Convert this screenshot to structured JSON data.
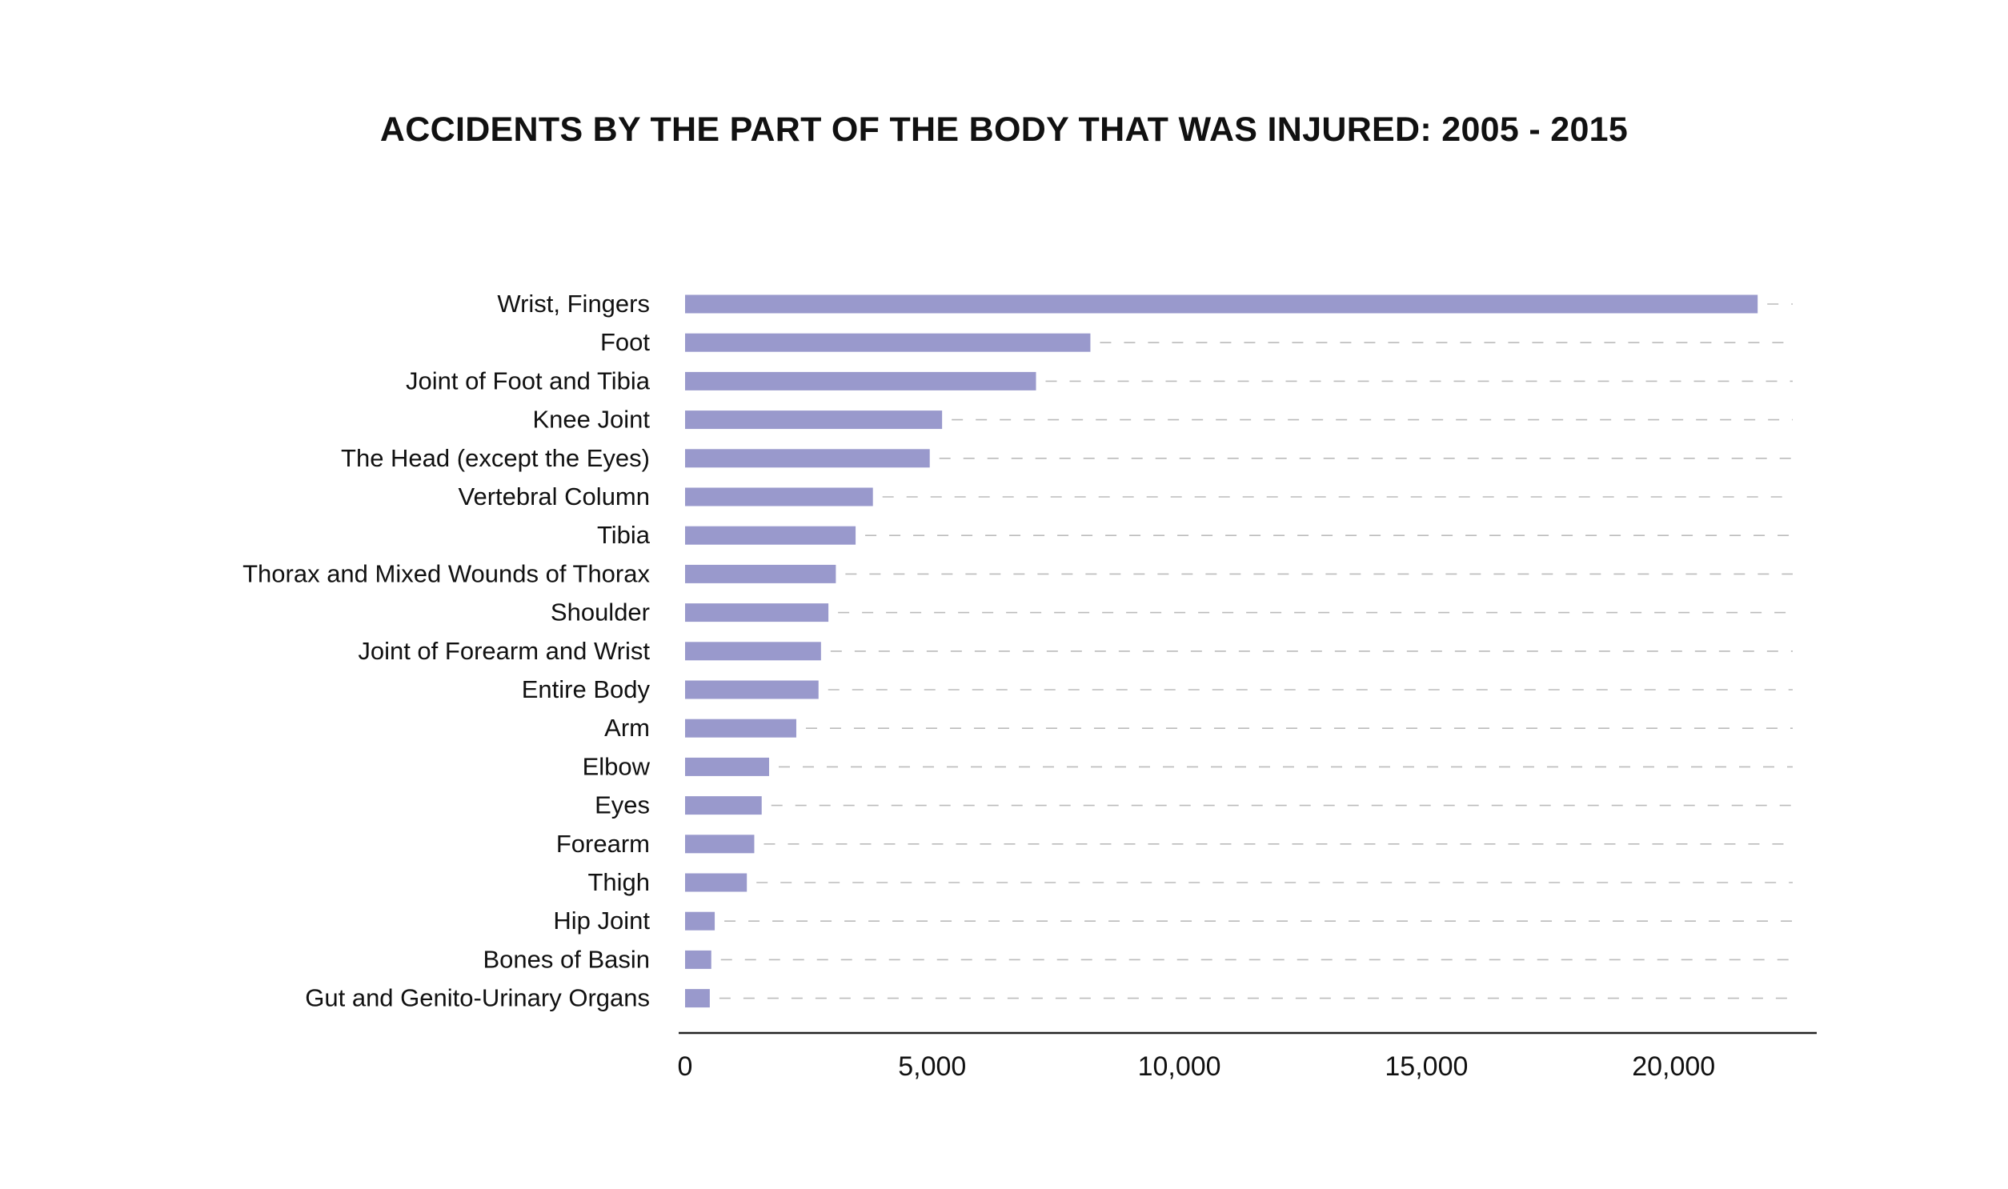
{
  "chart_data": {
    "type": "bar",
    "orientation": "horizontal",
    "title": "ACCIDENTS BY THE PART OF THE BODY THAT WAS INJURED: 2005 - 2015",
    "xlabel": "",
    "ylabel": "",
    "xlim": [
      0,
      22500
    ],
    "xticks": [
      0,
      5000,
      10000,
      15000,
      20000
    ],
    "xtick_labels": [
      "0",
      "5,000",
      "10,000",
      "15,000",
      "20,000"
    ],
    "categories": [
      "Wrist, Fingers",
      "Foot",
      "Joint of Foot and Tibia",
      "Knee Joint",
      "The Head (except the Eyes)",
      "Vertebral Column",
      "Tibia",
      "Thorax and Mixed Wounds of Thorax",
      "Shoulder",
      "Joint of Forearm and  Wrist",
      "Entire Body",
      "Arm",
      "Elbow",
      "Eyes",
      "Forearm",
      "Thigh",
      "Hip Joint",
      "Bones of Basin",
      "Gut and Genito-Urinary Organs"
    ],
    "values": [
      21700,
      8200,
      7100,
      5200,
      4950,
      3800,
      3450,
      3050,
      2900,
      2750,
      2700,
      2250,
      1700,
      1550,
      1400,
      1250,
      600,
      530,
      500
    ],
    "bar_color": "#9999cc",
    "guide_color": "#bbbbbb",
    "grid": false,
    "legend": "none"
  }
}
